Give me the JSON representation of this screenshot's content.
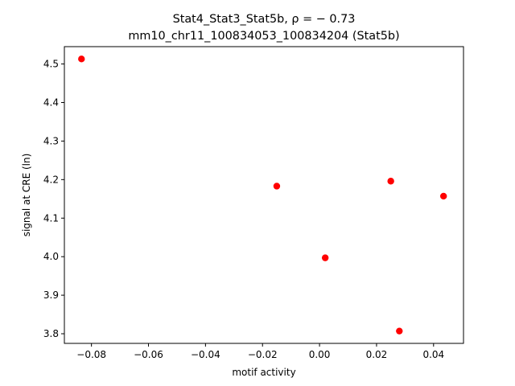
{
  "chart_data": {
    "type": "scatter",
    "title_line1": "Stat4_Stat3_Stat5b, ρ = − 0.73",
    "title_line2": "mm10_chr11_100834053_100834204 (Stat5b)",
    "xlabel": "motif activity",
    "ylabel": "signal at CRE (ln)",
    "xlim": [
      -0.0895,
      0.0505
    ],
    "ylim": [
      3.775,
      4.545
    ],
    "x_ticks": [
      -0.08,
      -0.06,
      -0.04,
      -0.02,
      0.0,
      0.02,
      0.04
    ],
    "x_tick_labels": [
      "−0.08",
      "−0.06",
      "−0.04",
      "−0.02",
      "0.00",
      "0.02",
      "0.04"
    ],
    "y_ticks": [
      3.8,
      3.9,
      4.0,
      4.1,
      4.2,
      4.3,
      4.4,
      4.5
    ],
    "y_tick_labels": [
      "3.8",
      "3.9",
      "4.0",
      "4.1",
      "4.2",
      "4.3",
      "4.4",
      "4.5"
    ],
    "grid": false,
    "marker_color": "#ff0000",
    "points": [
      {
        "x": -0.0835,
        "y": 4.513
      },
      {
        "x": -0.015,
        "y": 4.183
      },
      {
        "x": 0.002,
        "y": 3.997
      },
      {
        "x": 0.025,
        "y": 4.196
      },
      {
        "x": 0.028,
        "y": 3.807
      },
      {
        "x": 0.0435,
        "y": 4.157
      }
    ]
  }
}
